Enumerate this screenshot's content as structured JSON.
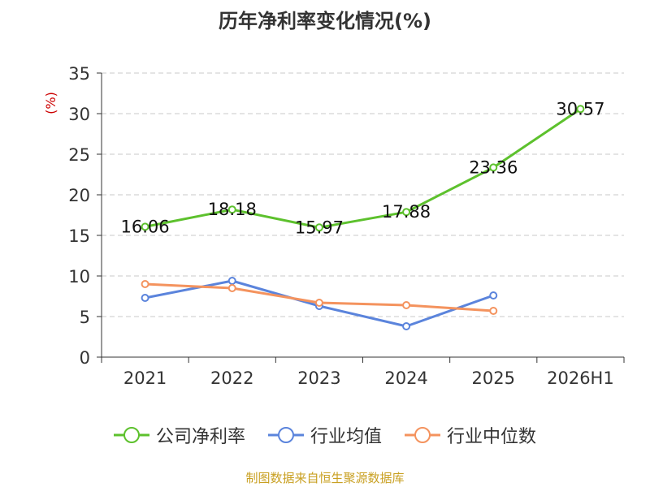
{
  "chart_data": {
    "type": "line",
    "title": "历年净利率变化情况(%)",
    "ylabel": "(%)",
    "xlabel": "",
    "categories": [
      "2021",
      "2022",
      "2023",
      "2024",
      "2025",
      "2026H1"
    ],
    "ylim": [
      0,
      35
    ],
    "yticks": [
      0,
      5,
      10,
      15,
      20,
      25,
      30,
      35
    ],
    "grid": "horizontal dashed",
    "legend_position": "bottom",
    "series": [
      {
        "name": "公司净利率",
        "color": "#5dc12d",
        "labeled": true,
        "values": [
          16.06,
          18.18,
          15.97,
          17.88,
          23.36,
          30.57
        ],
        "labels": [
          "16.06",
          "18.18",
          "15.97",
          "17.88",
          "23.36",
          "30.57"
        ]
      },
      {
        "name": "行业均值",
        "color": "#5b84dc",
        "labeled": false,
        "values": [
          7.3,
          9.4,
          6.3,
          3.8,
          7.6,
          null
        ]
      },
      {
        "name": "行业中位数",
        "color": "#f4935e",
        "labeled": false,
        "values": [
          9.0,
          8.5,
          6.7,
          6.4,
          5.7,
          null
        ]
      }
    ]
  },
  "source": "制图数据来自恒生聚源数据库"
}
